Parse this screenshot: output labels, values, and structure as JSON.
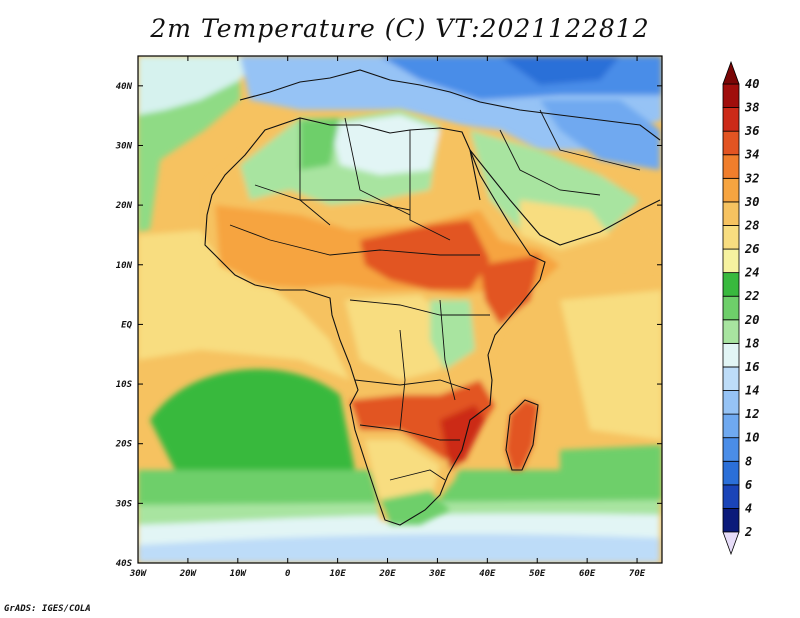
{
  "map": {
    "title": "2m Temperature (C) VT:2021122812",
    "footer": "GrADS: IGES/COLA",
    "lon_range": [
      -30,
      75
    ],
    "lat_range": [
      -40,
      45
    ],
    "lon_ticks": [
      {
        "value": -30,
        "label": "30W"
      },
      {
        "value": -20,
        "label": "20W"
      },
      {
        "value": -10,
        "label": "10W"
      },
      {
        "value": 0,
        "label": "0"
      },
      {
        "value": 10,
        "label": "10E"
      },
      {
        "value": 20,
        "label": "20E"
      },
      {
        "value": 30,
        "label": "30E"
      },
      {
        "value": 40,
        "label": "40E"
      },
      {
        "value": 50,
        "label": "50E"
      },
      {
        "value": 60,
        "label": "60E"
      },
      {
        "value": 70,
        "label": "70E"
      }
    ],
    "lat_ticks": [
      {
        "value": 40,
        "label": "40N"
      },
      {
        "value": 30,
        "label": "30N"
      },
      {
        "value": 20,
        "label": "20N"
      },
      {
        "value": 10,
        "label": "10N"
      },
      {
        "value": 0,
        "label": "EQ"
      },
      {
        "value": -10,
        "label": "10S"
      },
      {
        "value": -20,
        "label": "20S"
      },
      {
        "value": -30,
        "label": "30S"
      },
      {
        "value": -40,
        "label": "40S"
      }
    ],
    "colorbar": {
      "levels": [
        "2",
        "4",
        "6",
        "8",
        "10",
        "12",
        "14",
        "16",
        "18",
        "20",
        "22",
        "24",
        "26",
        "28",
        "30",
        "32",
        "34",
        "36",
        "38",
        "40"
      ],
      "colors": [
        "#e6dcf8",
        "#0b1a7a",
        "#1a44b8",
        "#2b6fd8",
        "#4a8de8",
        "#6fa9f0",
        "#96c3f5",
        "#bddcf8",
        "#e2f5f5",
        "#a8e4a0",
        "#6ecf6a",
        "#39b93e",
        "#f6f2a0",
        "#f8dd80",
        "#f6c260",
        "#f6a440",
        "#f07e2c",
        "#e25422",
        "#cc2a18",
        "#a00e0c",
        "#7a0606"
      ]
    }
  }
}
